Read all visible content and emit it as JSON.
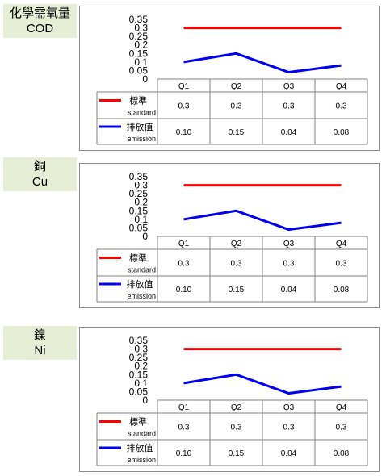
{
  "colors": {
    "label_bg": "#e7eed6",
    "standard": "#ff0000",
    "emission": "#0000ee",
    "grid": "#808080"
  },
  "chart_data": [
    {
      "type": "line",
      "title_zh": "化學需氧量",
      "title_en": "COD",
      "categories": [
        "Q1",
        "Q2",
        "Q3",
        "Q4"
      ],
      "ylim": [
        0,
        0.35
      ],
      "yticks": [
        "0.35",
        "0.3",
        "0.25",
        "0.2",
        "0.15",
        "0.1",
        "0.05",
        "0"
      ],
      "series": [
        {
          "name_zh": "標準",
          "name_en": "standard",
          "values": [
            0.3,
            0.3,
            0.3,
            0.3
          ],
          "labels": [
            "0.3",
            "0.3",
            "0.3",
            "0.3"
          ]
        },
        {
          "name_zh": "排放值",
          "name_en": "emission",
          "values": [
            0.1,
            0.15,
            0.04,
            0.08
          ],
          "labels": [
            "0.10",
            "0.15",
            "0.04",
            "0.08"
          ]
        }
      ]
    },
    {
      "type": "line",
      "title_zh": "銅",
      "title_en": "Cu",
      "categories": [
        "Q1",
        "Q2",
        "Q3",
        "Q4"
      ],
      "ylim": [
        0,
        0.35
      ],
      "yticks": [
        "0.35",
        "0.3",
        "0.25",
        "0.2",
        "0.15",
        "0.1",
        "0.05",
        "0"
      ],
      "series": [
        {
          "name_zh": "標準",
          "name_en": "standard",
          "values": [
            0.3,
            0.3,
            0.3,
            0.3
          ],
          "labels": [
            "0.3",
            "0.3",
            "0.3",
            "0.3"
          ]
        },
        {
          "name_zh": "排放值",
          "name_en": "emission",
          "values": [
            0.1,
            0.15,
            0.04,
            0.08
          ],
          "labels": [
            "0.10",
            "0.15",
            "0.04",
            "0.08"
          ]
        }
      ]
    },
    {
      "type": "line",
      "title_zh": "鎳",
      "title_en": "Ni",
      "categories": [
        "Q1",
        "Q2",
        "Q3",
        "Q4"
      ],
      "ylim": [
        0,
        0.35
      ],
      "yticks": [
        "0.35",
        "0.3",
        "0.25",
        "0.2",
        "0.15",
        "0.1",
        "0.05",
        "0"
      ],
      "series": [
        {
          "name_zh": "標準",
          "name_en": "standard",
          "values": [
            0.3,
            0.3,
            0.3,
            0.3
          ],
          "labels": [
            "0.3",
            "0.3",
            "0.3",
            "0.3"
          ]
        },
        {
          "name_zh": "排放值",
          "name_en": "emission",
          "values": [
            0.1,
            0.15,
            0.04,
            0.08
          ],
          "labels": [
            "0.10",
            "0.15",
            "0.04",
            "0.08"
          ]
        }
      ]
    }
  ]
}
